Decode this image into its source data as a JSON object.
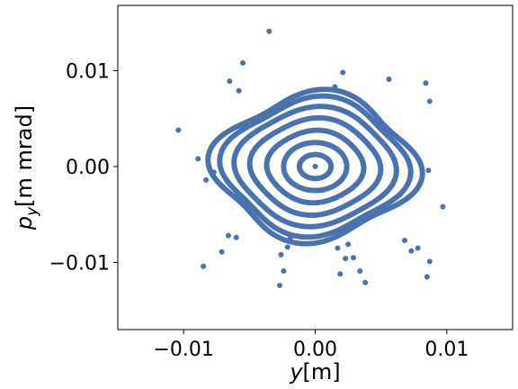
{
  "chart_data": {
    "type": "scatter",
    "title": "",
    "xlabel": {
      "symbol": "y",
      "unit": "[m]"
    },
    "ylabel": {
      "symbol": "p",
      "subscript": "y",
      "unit": "[m mrad]"
    },
    "xlim": [
      -0.015,
      0.015
    ],
    "ylim": [
      -0.017,
      0.0168
    ],
    "x_ticks": [
      -0.01,
      0.0,
      0.01
    ],
    "x_tick_labels": [
      "−0.01",
      "0.00",
      "0.01"
    ],
    "y_ticks": [
      -0.01,
      0.0,
      0.01
    ],
    "y_tick_labels": [
      "−0.01",
      "0.00",
      "0.01"
    ],
    "grid": false,
    "legend": "none",
    "marker_color": "#4a72b0",
    "rings": [
      {
        "rx": 0.0012,
        "ry": 0.00125,
        "wobble": 0.0
      },
      {
        "rx": 0.0024,
        "ry": 0.0025,
        "wobble": 0.0
      },
      {
        "rx": 0.0036,
        "ry": 0.0037,
        "wobble": 0.0001
      },
      {
        "rx": 0.0048,
        "ry": 0.0049,
        "wobble": 0.0002
      },
      {
        "rx": 0.0059,
        "ry": 0.006,
        "wobble": 0.0003
      },
      {
        "rx": 0.0068,
        "ry": 0.0069,
        "wobble": 0.0005
      },
      {
        "rx": 0.0075,
        "ry": 0.0074,
        "wobble": 0.0007
      }
    ],
    "center_point": {
      "x": 0.0,
      "y": 0.0
    },
    "scattered_points": [
      {
        "x": -0.0035,
        "y": 0.0141
      },
      {
        "x": -0.0055,
        "y": 0.0108
      },
      {
        "x": -0.0065,
        "y": 0.0089
      },
      {
        "x": -0.0058,
        "y": 0.0079
      },
      {
        "x": 0.0021,
        "y": 0.0098
      },
      {
        "x": 0.0015,
        "y": 0.0083
      },
      {
        "x": 0.0056,
        "y": 0.0091
      },
      {
        "x": 0.0084,
        "y": 0.0087
      },
      {
        "x": 0.0087,
        "y": 0.0068
      },
      {
        "x": -0.0104,
        "y": 0.0038
      },
      {
        "x": -0.0089,
        "y": 0.0008
      },
      {
        "x": -0.0083,
        "y": -0.0014
      },
      {
        "x": -0.0077,
        "y": -0.0006
      },
      {
        "x": -0.0071,
        "y": -0.0089
      },
      {
        "x": -0.0066,
        "y": -0.0072
      },
      {
        "x": -0.006,
        "y": -0.0074
      },
      {
        "x": -0.0085,
        "y": -0.0104
      },
      {
        "x": 0.0086,
        "y": -0.0004
      },
      {
        "x": 0.0097,
        "y": -0.0042
      },
      {
        "x": 0.0068,
        "y": -0.0077
      },
      {
        "x": 0.0073,
        "y": -0.0088
      },
      {
        "x": 0.0078,
        "y": -0.0085
      },
      {
        "x": 0.0087,
        "y": -0.0099
      },
      {
        "x": 0.0085,
        "y": -0.0115
      },
      {
        "x": -0.0027,
        "y": -0.0124
      },
      {
        "x": -0.0024,
        "y": -0.0109
      },
      {
        "x": -0.0026,
        "y": -0.0092
      },
      {
        "x": -0.0021,
        "y": -0.0084
      },
      {
        "x": -0.0019,
        "y": -0.0075
      },
      {
        "x": 0.0019,
        "y": -0.0112
      },
      {
        "x": 0.0023,
        "y": -0.0096
      },
      {
        "x": 0.0029,
        "y": -0.0095
      },
      {
        "x": 0.0034,
        "y": -0.0109
      },
      {
        "x": 0.0038,
        "y": -0.0121
      },
      {
        "x": 0.0025,
        "y": -0.0081
      },
      {
        "x": 0.0017,
        "y": -0.0085
      }
    ]
  }
}
